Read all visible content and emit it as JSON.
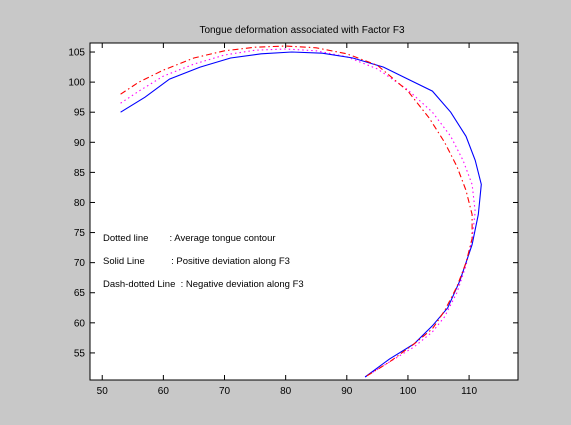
{
  "chart_data": {
    "type": "line",
    "title": "Tongue deformation associated with Factor F3",
    "xlabel": "",
    "ylabel": "",
    "xlim": [
      48,
      118
    ],
    "ylim": [
      50.5,
      106.5
    ],
    "xticks": [
      50,
      60,
      70,
      80,
      90,
      100,
      110
    ],
    "yticks": [
      55,
      60,
      65,
      70,
      75,
      80,
      85,
      90,
      95,
      100,
      105
    ],
    "grid": false,
    "annotations": [
      "Dotted line        : Average tongue contour",
      "Solid Line          : Positive deviation along F3",
      "Dash-dotted Line  : Negative deviation along F3"
    ],
    "series": [
      {
        "style": "dotted",
        "color": "#ff00ff",
        "x": [
          53,
          56,
          60,
          65,
          70,
          75,
          80,
          85,
          90,
          95,
          100,
          104,
          107,
          109,
          110.5,
          111,
          110.5,
          109.5,
          108,
          106,
          104,
          101,
          97,
          93
        ],
        "y": [
          96.5,
          98.5,
          101,
          103,
          104.5,
          105.3,
          105.5,
          105.2,
          104.2,
          102.2,
          98.7,
          95,
          91,
          87,
          83,
          78.5,
          74,
          69.5,
          65,
          61,
          58.5,
          56,
          53.5,
          51
        ]
      },
      {
        "style": "solid",
        "color": "#0000ff",
        "x": [
          53,
          57,
          61,
          66,
          71,
          76,
          81,
          86,
          91,
          96,
          100,
          104,
          107,
          109.5,
          111,
          112,
          111.5,
          110.5,
          108.5,
          106.5,
          104,
          101,
          97,
          93
        ],
        "y": [
          95,
          97.5,
          100.5,
          102.5,
          104,
          104.7,
          105,
          104.8,
          104,
          102.5,
          100.5,
          98.5,
          95,
          91,
          87,
          83,
          78,
          73,
          67,
          62.5,
          59.5,
          56.5,
          54,
          51
        ]
      },
      {
        "style": "dash-dotted",
        "color": "#ff0000",
        "x": [
          53,
          56,
          60,
          65,
          70,
          75,
          80,
          85,
          90,
          95,
          100,
          103.5,
          106,
          108,
          109.5,
          110.5,
          110.5,
          109.5,
          108,
          106,
          104,
          101,
          97,
          93
        ],
        "y": [
          98,
          100,
          102,
          104,
          105.2,
          105.8,
          106,
          105.7,
          104.7,
          102.8,
          98.5,
          94,
          90,
          86,
          82,
          78,
          74,
          70,
          66,
          62,
          59,
          56.5,
          53.5,
          51
        ]
      }
    ]
  }
}
